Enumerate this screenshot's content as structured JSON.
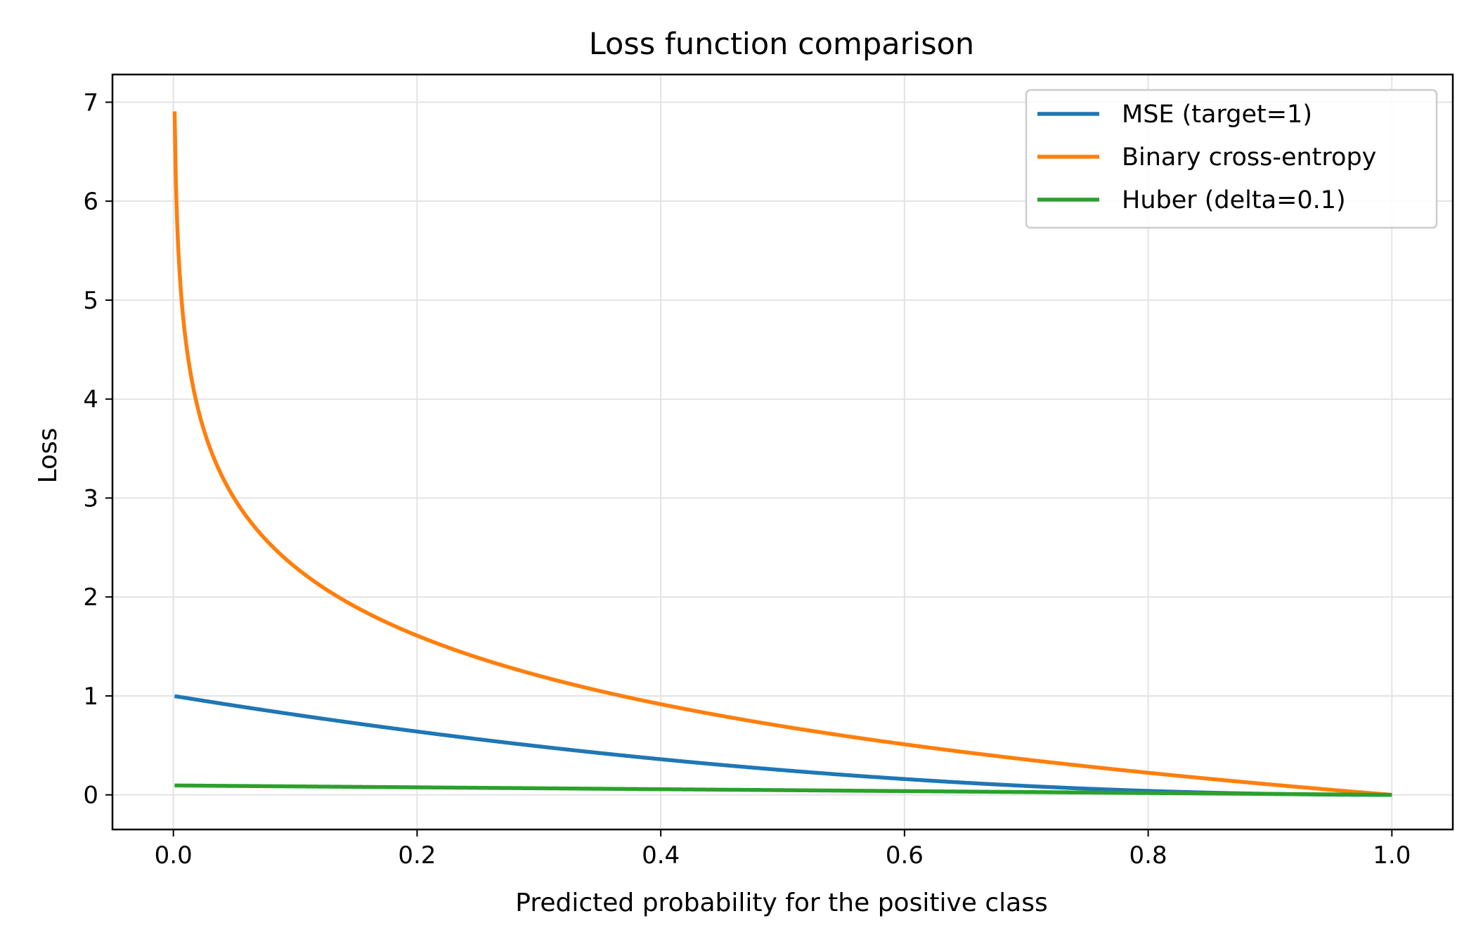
{
  "chart_data": {
    "type": "line",
    "title": "Loss function comparison",
    "xlabel": "Predicted probability for the positive class",
    "ylabel": "Loss",
    "xlim": [
      -0.05,
      1.05
    ],
    "ylim": [
      -0.35,
      7.28
    ],
    "x_ticks": [
      0.0,
      0.2,
      0.4,
      0.6,
      0.8,
      1.0
    ],
    "x_tick_labels": [
      "0.0",
      "0.2",
      "0.4",
      "0.6",
      "0.8",
      "1.0"
    ],
    "y_ticks": [
      0,
      1,
      2,
      3,
      4,
      5,
      6,
      7
    ],
    "y_tick_labels": [
      "0",
      "1",
      "2",
      "3",
      "4",
      "5",
      "6",
      "7"
    ],
    "grid": true,
    "legend_position": "top-right",
    "series": [
      {
        "name": "MSE (target=1)",
        "color": "#1f77b4",
        "formula": "mse",
        "x": [
          0.001,
          0.1,
          0.2,
          0.3,
          0.4,
          0.5,
          0.6,
          0.7,
          0.8,
          0.9,
          1.0
        ],
        "values": [
          0.998,
          0.81,
          0.64,
          0.49,
          0.36,
          0.25,
          0.16,
          0.09,
          0.04,
          0.01,
          0.0
        ]
      },
      {
        "name": "Binary cross-entropy",
        "color": "#ff7f0e",
        "formula": "bce",
        "x": [
          0.001,
          0.01,
          0.05,
          0.1,
          0.2,
          0.3,
          0.4,
          0.5,
          0.6,
          0.7,
          0.8,
          0.9,
          1.0
        ],
        "values": [
          6.91,
          4.61,
          3.0,
          2.3,
          1.61,
          1.2,
          0.92,
          0.69,
          0.51,
          0.36,
          0.22,
          0.11,
          0.0
        ]
      },
      {
        "name": "Huber (delta=0.1)",
        "color": "#2ca02c",
        "formula": "huber",
        "x": [
          0.001,
          0.2,
          0.4,
          0.6,
          0.8,
          1.0
        ],
        "values": [
          0.095,
          0.075,
          0.055,
          0.035,
          0.015,
          0.0
        ]
      }
    ]
  }
}
